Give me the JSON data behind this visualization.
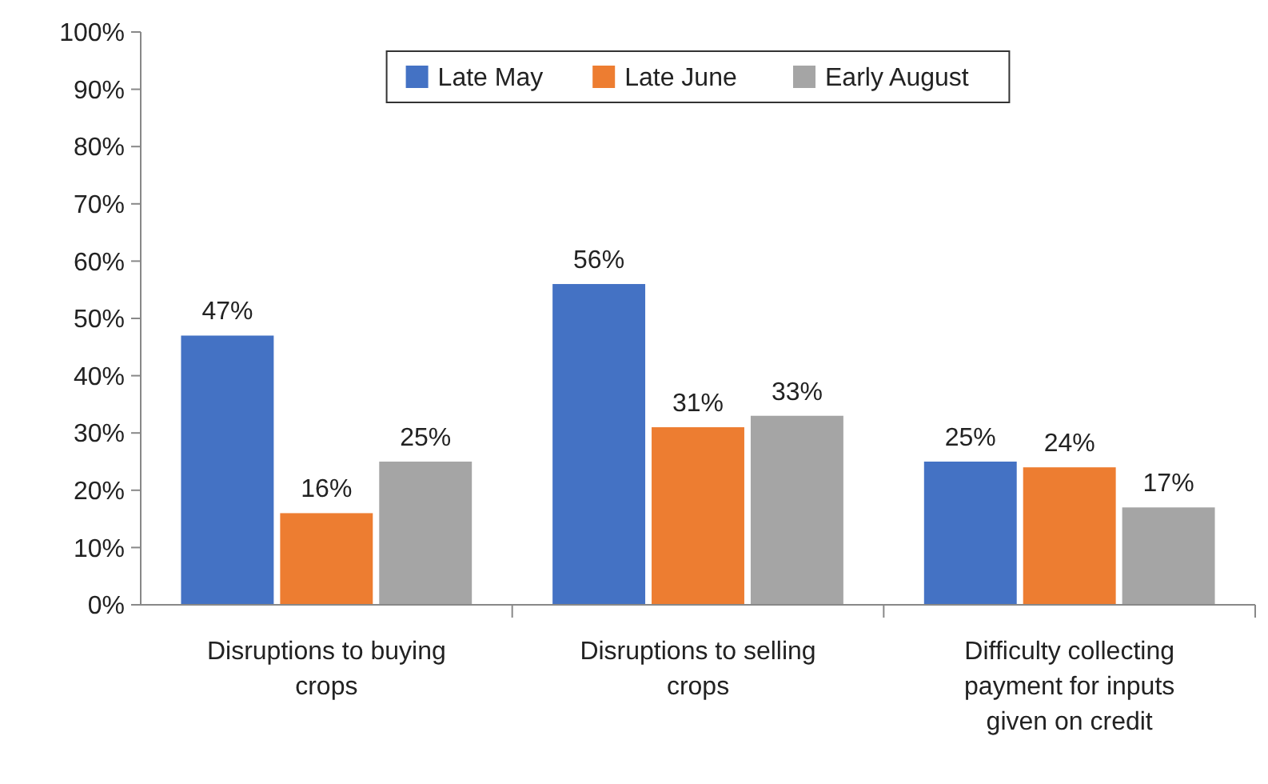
{
  "chart_data": {
    "type": "bar",
    "categories": [
      "Disruptions to buying crops",
      "Disruptions to selling crops",
      "Difficulty collecting payment for inputs given on credit"
    ],
    "series": [
      {
        "name": "Late May",
        "color": "#4472c4",
        "values": [
          47,
          56,
          25
        ],
        "value_labels": [
          "47%",
          "56%",
          "25%"
        ]
      },
      {
        "name": "Late June",
        "color": "#ed7d31",
        "values": [
          16,
          31,
          24
        ],
        "value_labels": [
          "16%",
          "31%",
          "24%"
        ]
      },
      {
        "name": "Early August",
        "color": "#a5a5a5",
        "values": [
          25,
          33,
          17
        ],
        "value_labels": [
          "25%",
          "33%",
          "17%"
        ]
      }
    ],
    "ylim": [
      0,
      100
    ],
    "yticks": [
      {
        "value": 0,
        "label": "0%"
      },
      {
        "value": 10,
        "label": "10%"
      },
      {
        "value": 20,
        "label": "20%"
      },
      {
        "value": 30,
        "label": "30%"
      },
      {
        "value": 40,
        "label": "40%"
      },
      {
        "value": 50,
        "label": "50%"
      },
      {
        "value": 60,
        "label": "60%"
      },
      {
        "value": 70,
        "label": "70%"
      },
      {
        "value": 80,
        "label": "80%"
      },
      {
        "value": 90,
        "label": "90%"
      },
      {
        "value": 100,
        "label": "100%"
      }
    ],
    "legend": "top",
    "grid": false
  }
}
